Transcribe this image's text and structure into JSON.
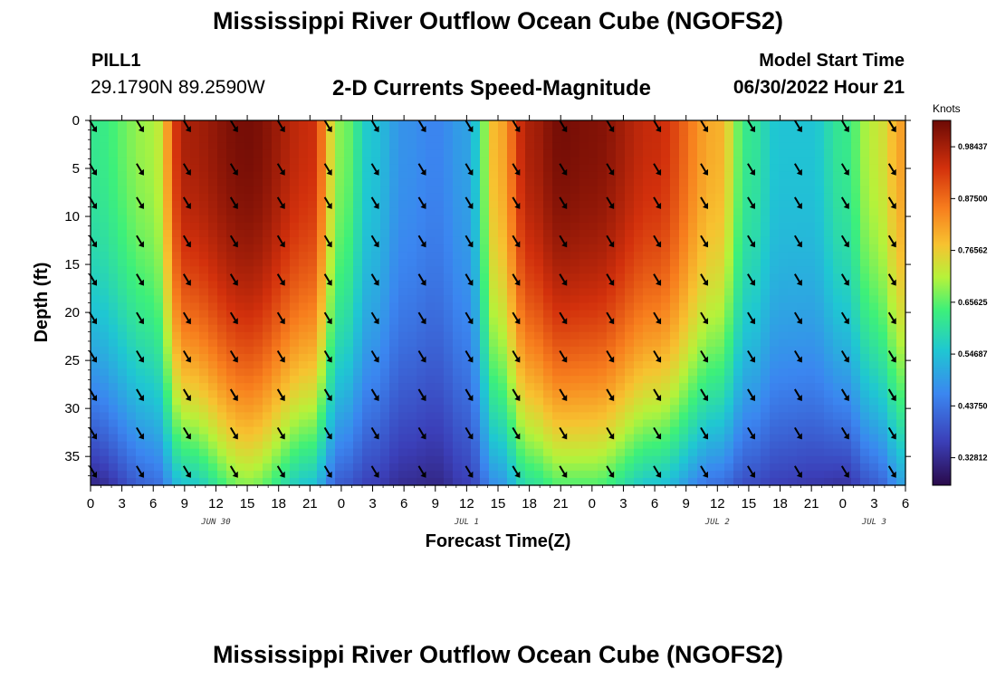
{
  "header": {
    "title": "Mississippi River Outflow Ocean Cube (NGOFS2)",
    "station_name": "PILL1",
    "coords": "29.1790N  89.2590W",
    "subtitle": "2-D Currents Speed-Magnitude",
    "model_start_label": "Model Start Time",
    "model_start_time": "06/30/2022 Hour 21"
  },
  "footer": {
    "title": "Mississippi River Outflow Ocean Cube (NGOFS2)"
  },
  "chart_data": {
    "type": "heatmap",
    "xlabel": "Forecast Time(Z)",
    "ylabel": "Depth (ft)",
    "x_tick_labels": [
      "0",
      "3",
      "6",
      "9",
      "12",
      "15",
      "18",
      "21",
      "0",
      "3",
      "6",
      "9",
      "12",
      "15",
      "18",
      "21",
      "0",
      "3",
      "6",
      "9",
      "12",
      "15",
      "18",
      "21",
      "0",
      "3",
      "6"
    ],
    "x_hours_range": [
      0,
      78
    ],
    "date_labels": [
      {
        "text": "JUN 30",
        "hour": 12
      },
      {
        "text": "JUL 1",
        "hour": 36
      },
      {
        "text": "JUL 2",
        "hour": 60
      },
      {
        "text": "JUL 3",
        "hour": 75
      }
    ],
    "y_ticks": [
      0,
      5,
      10,
      15,
      20,
      25,
      30,
      35
    ],
    "ylim": [
      0,
      38
    ],
    "colorbar": {
      "label": "Knots",
      "ticks": [
        "0.98437",
        "0.87500",
        "0.76562",
        "0.65625",
        "0.54687",
        "0.43750",
        "0.32812"
      ],
      "range": [
        0.27,
        1.04
      ]
    },
    "surface_speed_by_hour": {
      "hours": [
        0,
        6,
        9,
        15,
        21,
        24,
        27,
        30,
        33,
        36,
        39,
        42,
        45,
        48,
        54,
        60,
        63,
        66,
        69,
        72,
        75,
        78
      ],
      "speed": [
        0.62,
        0.7,
        0.98,
        1.03,
        0.95,
        0.68,
        0.55,
        0.48,
        0.46,
        0.5,
        0.8,
        0.98,
        1.03,
        1.02,
        0.95,
        0.8,
        0.62,
        0.55,
        0.55,
        0.62,
        0.72,
        0.82
      ]
    },
    "bottom_speed_by_hour": {
      "hours": [
        0,
        6,
        9,
        15,
        21,
        24,
        27,
        30,
        33,
        36,
        39,
        42,
        45,
        48,
        54,
        60,
        63,
        66,
        69,
        72,
        75,
        78
      ],
      "speed": [
        0.32,
        0.42,
        0.55,
        0.68,
        0.55,
        0.4,
        0.36,
        0.33,
        0.32,
        0.36,
        0.48,
        0.6,
        0.65,
        0.65,
        0.55,
        0.43,
        0.38,
        0.36,
        0.35,
        0.34,
        0.4,
        0.5
      ]
    },
    "vectors": {
      "depths": [
        0,
        4.5,
        8,
        12,
        16,
        20,
        24,
        28,
        32,
        36
      ],
      "hours": [
        0,
        4.5,
        9,
        13.5,
        18,
        22.5,
        27,
        31.5,
        36,
        40.5,
        45,
        49.5,
        54,
        58.5,
        63,
        67.5,
        72,
        76.5
      ],
      "direction": "southeast"
    }
  }
}
